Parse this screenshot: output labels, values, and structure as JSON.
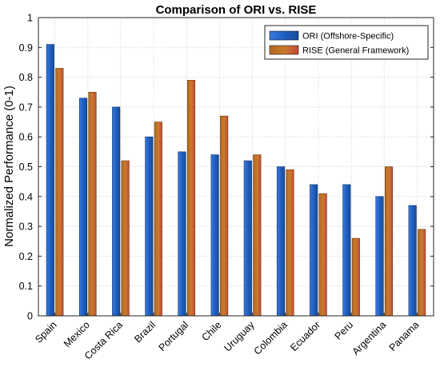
{
  "chart_data": {
    "type": "bar",
    "title": "Comparison of ORI vs. RISE",
    "xlabel": "",
    "ylabel": "Normalized Performance (0-1)",
    "ylim": [
      0,
      1
    ],
    "yticks": [
      "0",
      "0.1",
      "0.2",
      "0.3",
      "0.4",
      "0.5",
      "0.6",
      "0.7",
      "0.8",
      "0.9",
      "1"
    ],
    "grid": true,
    "legend_position": "top-right",
    "categories": [
      "Spain",
      "Mexico",
      "Costa Rica",
      "Brazil",
      "Portugal",
      "Chile",
      "Uruguay",
      "Colombia",
      "Ecuador",
      "Peru",
      "Argentina",
      "Panama"
    ],
    "series": [
      {
        "name": "ORI (Offshore-Specific)",
        "color": "#1f5fbf",
        "values": [
          0.91,
          0.73,
          0.7,
          0.6,
          0.55,
          0.54,
          0.52,
          0.5,
          0.44,
          0.44,
          0.4,
          0.37
        ]
      },
      {
        "name": "RISE (General Framework)",
        "color": "#c0762a",
        "values": [
          0.83,
          0.75,
          0.52,
          0.65,
          0.79,
          0.67,
          0.54,
          0.49,
          0.41,
          0.26,
          0.5,
          0.29
        ]
      }
    ]
  }
}
